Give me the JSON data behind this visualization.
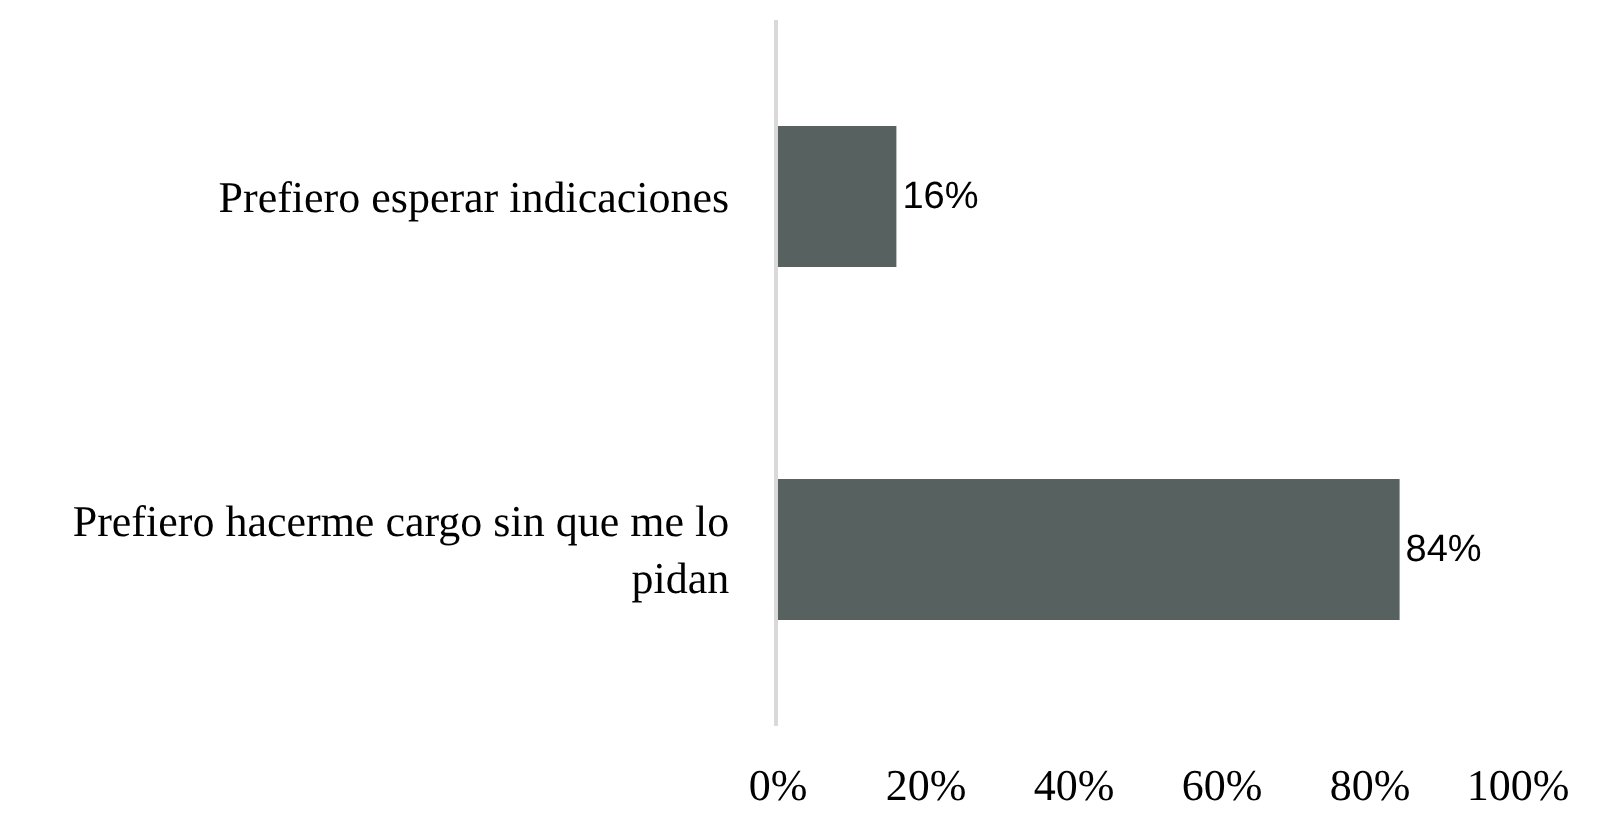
{
  "chart_data": {
    "type": "bar",
    "orientation": "horizontal",
    "categories": [
      "Prefiero esperar indicaciones",
      "Prefiero hacerme cargo sin que me lo pidan"
    ],
    "values": [
      16,
      84
    ],
    "color": "#57615f",
    "value_labels": [
      "16%",
      "84%"
    ],
    "xlim": [
      0,
      100
    ],
    "xticks": [
      {
        "value": 0,
        "label": "0%"
      },
      {
        "value": 20,
        "label": "20%"
      },
      {
        "value": 40,
        "label": "40%"
      },
      {
        "value": 60,
        "label": "60%"
      },
      {
        "value": 80,
        "label": "80%"
      },
      {
        "value": 100,
        "label": "100%"
      }
    ]
  }
}
